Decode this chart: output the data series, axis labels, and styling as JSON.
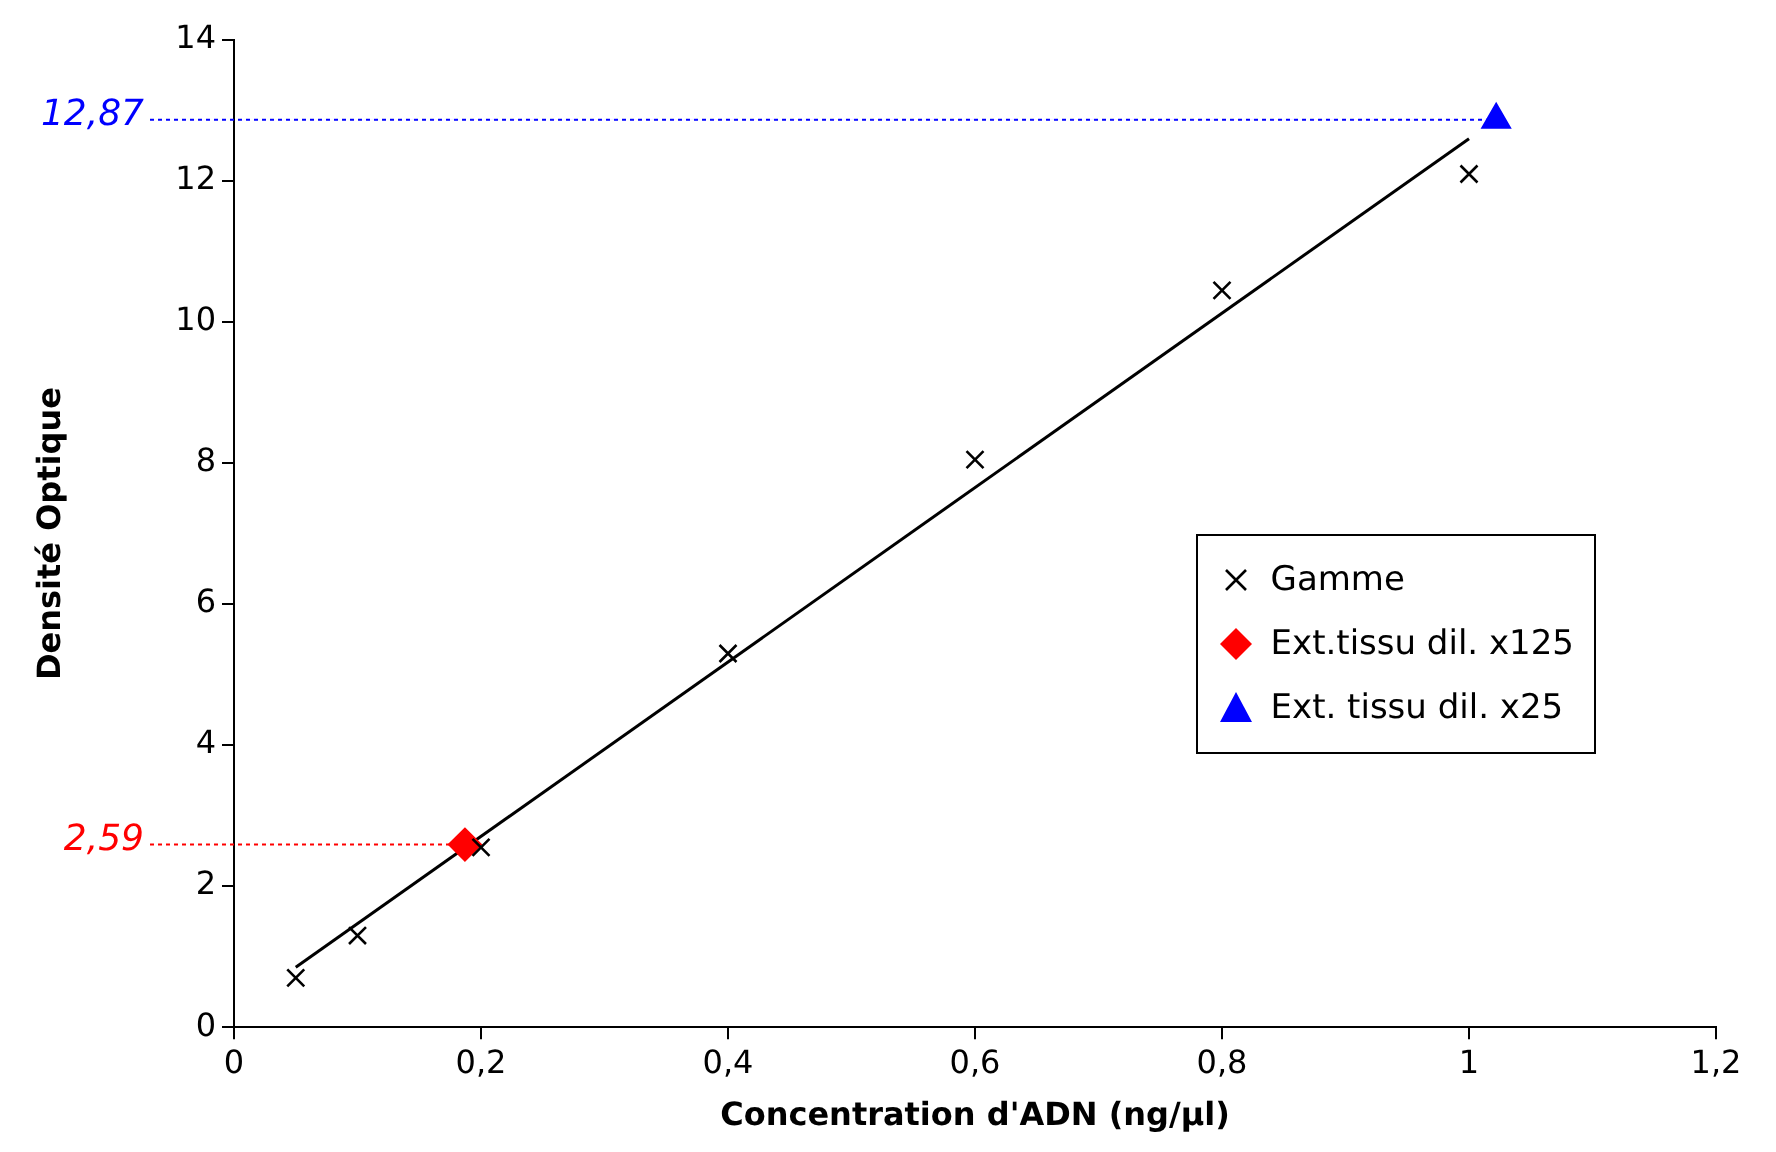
{
  "chart_data": {
    "type": "scatter",
    "xlabel": "Concentration d'ADN (ng/µl)",
    "ylabel": "Densité Optique",
    "xlim": [
      0,
      1.2
    ],
    "xticks": [
      0,
      {
        "value": 0.2,
        "label": "0,2"
      },
      {
        "value": 0.4,
        "label": "0,4"
      },
      {
        "value": 0.6,
        "label": "0,6"
      },
      {
        "value": 0.8,
        "label": "0,8"
      },
      1,
      {
        "value": 1.2,
        "label": "1,2"
      }
    ],
    "ylim": [
      0,
      14
    ],
    "yticks": [
      0,
      2,
      4,
      6,
      8,
      10,
      12,
      14
    ],
    "grid": false,
    "legend": "right",
    "series": [
      {
        "name": "Gamme",
        "color": "#000000",
        "marker": "cross",
        "x": [
          0.05,
          0.1,
          0.2,
          0.4,
          0.6,
          0.8,
          1.0
        ],
        "values": [
          0.7,
          1.3,
          2.55,
          5.3,
          8.05,
          10.45,
          12.1
        ]
      },
      {
        "name": "Ext.tissu dil. x125",
        "color": "#ff0000",
        "marker": "diamond",
        "x": [
          0.187
        ],
        "values": [
          2.59
        ]
      },
      {
        "name": "Ext. tissu dil. x25",
        "color": "#0000ff",
        "marker": "triangle",
        "x": [
          1.022
        ],
        "values": [
          12.87
        ]
      },
      {
        "type": "line",
        "color": "#000000",
        "marker": "none",
        "x": [
          0.05,
          1.0
        ],
        "values": [
          0.85,
          12.6
        ]
      }
    ],
    "ref_lines": [
      {
        "axis": "y",
        "value": 2.59,
        "label": "2,59",
        "color": "#ff0000",
        "line_style": "dotted"
      },
      {
        "axis": "y",
        "value": 12.87,
        "label": "12,87",
        "color": "#0000ff",
        "line_style": "dotted"
      }
    ]
  }
}
